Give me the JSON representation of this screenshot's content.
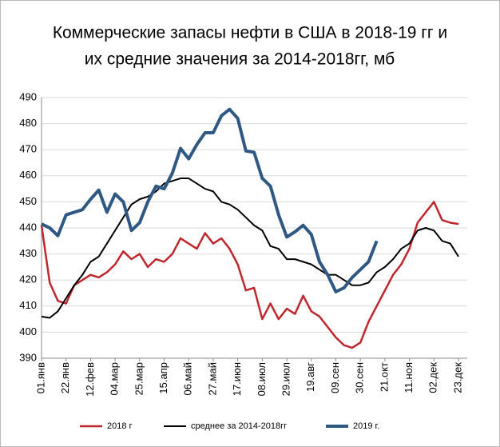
{
  "chart_data": {
    "type": "line",
    "title": [
      "Коммерческие запасы нефти в США в 2018-19 гг и",
      "их средние значения за  2014-2018гг, мб"
    ],
    "categories": [
      "01.янв",
      null,
      null,
      "22.янв",
      null,
      null,
      "12.фев",
      null,
      null,
      "04.мар",
      null,
      null,
      "25.мар",
      null,
      null,
      "15.апр",
      null,
      null,
      "06.май",
      null,
      null,
      "27.май",
      null,
      null,
      "17.июн",
      null,
      null,
      "08.июл",
      null,
      null,
      "29.июл",
      null,
      null,
      "19.авг",
      null,
      null,
      "09.сен",
      null,
      null,
      "30.сен",
      null,
      null,
      "21.окт",
      null,
      null,
      "11.ноя",
      null,
      null,
      "02.дек",
      null,
      null,
      "23.дек"
    ],
    "series": [
      {
        "name": "2018 г",
        "color": "#c0272d",
        "width": 2.5,
        "values": [
          441,
          419,
          412,
          411,
          418,
          420,
          422,
          421,
          423,
          426,
          431,
          428,
          430,
          425,
          428,
          427,
          430,
          436,
          434,
          432,
          438,
          434,
          436,
          432,
          426,
          416,
          417,
          405,
          411,
          405,
          409,
          407,
          414,
          408,
          406,
          402,
          398,
          395,
          394,
          396,
          404,
          410,
          416,
          422,
          426,
          432,
          442,
          446,
          450,
          443,
          442,
          441.5
        ]
      },
      {
        "name": "среднее за 2014-2018гг",
        "color": "#000000",
        "width": 2,
        "values": [
          406,
          405.5,
          408,
          413,
          418,
          422,
          427,
          429,
          434,
          439,
          444,
          449,
          451,
          452,
          454,
          457,
          458,
          459,
          459,
          457,
          455,
          454,
          450,
          449,
          447,
          444,
          441,
          439,
          433,
          432,
          428,
          428,
          427,
          426,
          424,
          422,
          422,
          420,
          418,
          418,
          419,
          423,
          425,
          428,
          432,
          434,
          439,
          440,
          439,
          435,
          434,
          429
        ]
      },
      {
        "name": "2019 г.",
        "color": "#2f5883",
        "width": 4,
        "values": [
          441.5,
          440,
          437,
          445,
          446,
          447,
          451,
          454.5,
          446,
          453,
          450,
          439,
          442,
          450,
          456,
          455,
          461,
          470.5,
          466.5,
          472,
          476.5,
          476.5,
          483,
          485.5,
          482,
          469.5,
          469,
          459,
          456,
          445,
          436.5,
          438.5,
          441,
          437.5,
          427,
          422,
          415.5,
          417,
          421,
          424,
          427,
          435,
          null,
          null,
          null,
          null,
          null,
          null,
          null,
          null,
          null,
          null
        ]
      }
    ],
    "ylim": [
      390,
      490
    ],
    "yticks": [
      390,
      400,
      410,
      420,
      430,
      440,
      450,
      460,
      470,
      480,
      490
    ],
    "grid": true
  }
}
